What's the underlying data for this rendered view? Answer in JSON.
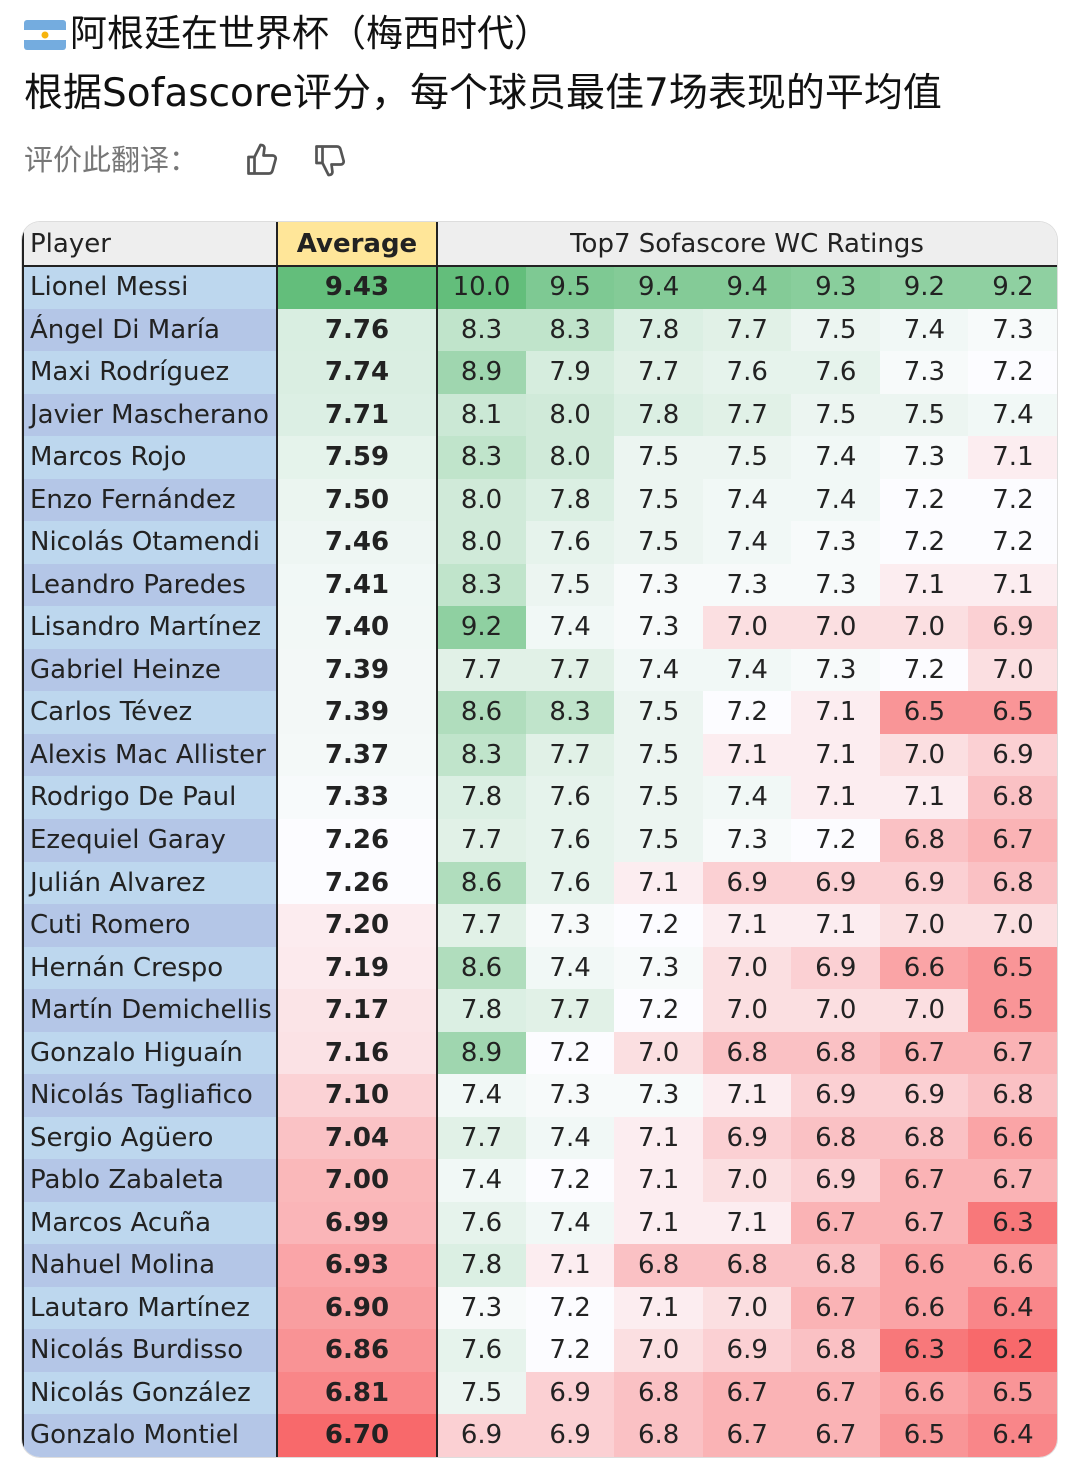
{
  "header": {
    "title": "阿根廷在世界杯（梅西时代）",
    "subtitle": "根据Sofascore评分，每个球员最佳7场表现的平均值",
    "rate_prompt": "评价此翻译："
  },
  "table": {
    "columns": [
      "Player",
      "Average",
      "Top7 Sofascore WC Ratings"
    ],
    "rows": [
      [
        "Lionel Messi",
        "9.43",
        "10.0",
        "9.5",
        "9.4",
        "9.4",
        "9.3",
        "9.2",
        "9.2"
      ],
      [
        "Ángel Di María",
        "7.76",
        "8.3",
        "8.3",
        "7.8",
        "7.7",
        "7.5",
        "7.4",
        "7.3"
      ],
      [
        "Maxi Rodríguez",
        "7.74",
        "8.9",
        "7.9",
        "7.7",
        "7.6",
        "7.6",
        "7.3",
        "7.2"
      ],
      [
        "Javier Mascherano",
        "7.71",
        "8.1",
        "8.0",
        "7.8",
        "7.7",
        "7.5",
        "7.5",
        "7.4"
      ],
      [
        "Marcos Rojo",
        "7.59",
        "8.3",
        "8.0",
        "7.5",
        "7.5",
        "7.4",
        "7.3",
        "7.1"
      ],
      [
        "Enzo Fernández",
        "7.50",
        "8.0",
        "7.8",
        "7.5",
        "7.4",
        "7.4",
        "7.2",
        "7.2"
      ],
      [
        "Nicolás Otamendi",
        "7.46",
        "8.0",
        "7.6",
        "7.5",
        "7.4",
        "7.3",
        "7.2",
        "7.2"
      ],
      [
        "Leandro Paredes",
        "7.41",
        "8.3",
        "7.5",
        "7.3",
        "7.3",
        "7.3",
        "7.1",
        "7.1"
      ],
      [
        "Lisandro Martínez",
        "7.40",
        "9.2",
        "7.4",
        "7.3",
        "7.0",
        "7.0",
        "7.0",
        "6.9"
      ],
      [
        "Gabriel Heinze",
        "7.39",
        "7.7",
        "7.7",
        "7.4",
        "7.4",
        "7.3",
        "7.2",
        "7.0"
      ],
      [
        "Carlos Tévez",
        "7.39",
        "8.6",
        "8.3",
        "7.5",
        "7.2",
        "7.1",
        "6.5",
        "6.5"
      ],
      [
        "Alexis Mac Allister",
        "7.37",
        "8.3",
        "7.7",
        "7.5",
        "7.1",
        "7.1",
        "7.0",
        "6.9"
      ],
      [
        "Rodrigo De Paul",
        "7.33",
        "7.8",
        "7.6",
        "7.5",
        "7.4",
        "7.1",
        "7.1",
        "6.8"
      ],
      [
        "Ezequiel Garay",
        "7.26",
        "7.7",
        "7.6",
        "7.5",
        "7.3",
        "7.2",
        "6.8",
        "6.7"
      ],
      [
        "Julián Alvarez",
        "7.26",
        "8.6",
        "7.6",
        "7.1",
        "6.9",
        "6.9",
        "6.9",
        "6.8"
      ],
      [
        "Cuti Romero",
        "7.20",
        "7.7",
        "7.3",
        "7.2",
        "7.1",
        "7.1",
        "7.0",
        "7.0"
      ],
      [
        "Hernán Crespo",
        "7.19",
        "8.6",
        "7.4",
        "7.3",
        "7.0",
        "6.9",
        "6.6",
        "6.5"
      ],
      [
        "Martín Demichellis",
        "7.17",
        "7.8",
        "7.7",
        "7.2",
        "7.0",
        "7.0",
        "7.0",
        "6.5"
      ],
      [
        "Gonzalo Higuaín",
        "7.16",
        "8.9",
        "7.2",
        "7.0",
        "6.8",
        "6.8",
        "6.7",
        "6.7"
      ],
      [
        "Nicolás Tagliafico",
        "7.10",
        "7.4",
        "7.3",
        "7.3",
        "7.1",
        "6.9",
        "6.9",
        "6.8"
      ],
      [
        "Sergio Agüero",
        "7.04",
        "7.7",
        "7.4",
        "7.1",
        "6.9",
        "6.8",
        "6.8",
        "6.6"
      ],
      [
        "Pablo Zabaleta",
        "7.00",
        "7.4",
        "7.2",
        "7.1",
        "7.0",
        "6.9",
        "6.7",
        "6.7"
      ],
      [
        "Marcos Acuña",
        "6.99",
        "7.6",
        "7.4",
        "7.1",
        "7.1",
        "6.7",
        "6.7",
        "6.3"
      ],
      [
        "Nahuel Molina",
        "6.93",
        "7.8",
        "7.1",
        "6.8",
        "6.8",
        "6.8",
        "6.6",
        "6.6"
      ],
      [
        "Lautaro Martínez",
        "6.90",
        "7.3",
        "7.2",
        "7.1",
        "7.0",
        "6.7",
        "6.6",
        "6.4"
      ],
      [
        "Nicolás Burdisso",
        "6.86",
        "7.6",
        "7.2",
        "7.0",
        "6.9",
        "6.8",
        "6.3",
        "6.2"
      ],
      [
        "Nicolás González",
        "6.81",
        "7.5",
        "6.9",
        "6.8",
        "6.7",
        "6.7",
        "6.6",
        "6.5"
      ],
      [
        "Gonzalo Montiel",
        "6.70",
        "6.9",
        "6.9",
        "6.8",
        "6.7",
        "6.7",
        "6.5",
        "6.4"
      ]
    ]
  }
}
